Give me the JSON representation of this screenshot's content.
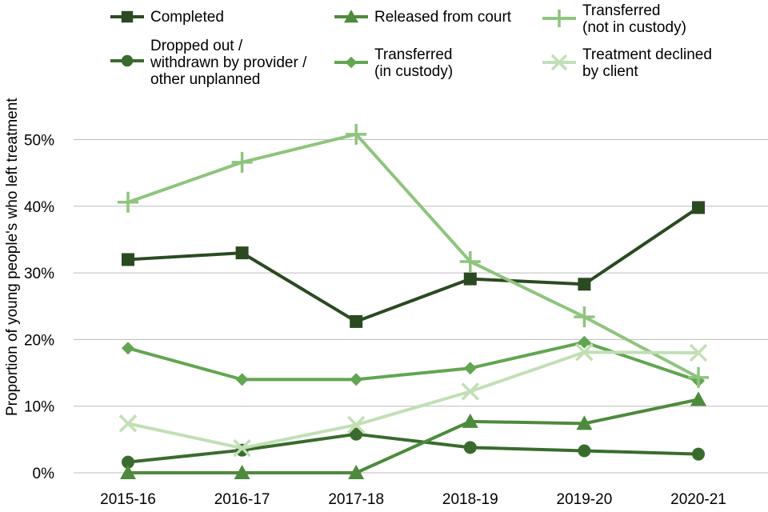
{
  "chart_data": {
    "type": "line",
    "title": "",
    "xlabel": "",
    "ylabel": "Proportion of young people's who left treatment",
    "categories": [
      "2015-16",
      "2016-17",
      "2017-18",
      "2018-19",
      "2019-20",
      "2020-21"
    ],
    "ylim": [
      0,
      0.55
    ],
    "yticks": [
      {
        "value": 0,
        "label": "0%"
      },
      {
        "value": 0.1,
        "label": "10%"
      },
      {
        "value": 0.2,
        "label": "20%"
      },
      {
        "value": 0.3,
        "label": "30%"
      },
      {
        "value": 0.4,
        "label": "40%"
      },
      {
        "value": 0.5,
        "label": "50%"
      }
    ],
    "grid": "horizontal",
    "legend_position": "top",
    "series": [
      {
        "name": "Completed",
        "marker": "square",
        "color": "#2b4a22",
        "values": [
          0.32,
          0.33,
          0.227,
          0.291,
          0.283,
          0.398
        ]
      },
      {
        "name": "Dropped out / withdrawn by provider / other unplanned",
        "marker": "circle",
        "color": "#3a6b2e",
        "values": [
          0.016,
          0.034,
          0.058,
          0.038,
          0.033,
          0.028
        ]
      },
      {
        "name": "Released from court",
        "marker": "triangle",
        "color": "#4e8a3e",
        "values": [
          0.0,
          0.0,
          0.0,
          0.077,
          0.074,
          0.11
        ]
      },
      {
        "name": "Transferred (in custody)",
        "marker": "diamond",
        "color": "#63a552",
        "values": [
          0.187,
          0.14,
          0.14,
          0.157,
          0.196,
          0.138
        ]
      },
      {
        "name": "Transferred (not in custody)",
        "marker": "plus",
        "color": "#8fc47e",
        "values": [
          0.406,
          0.466,
          0.508,
          0.317,
          0.234,
          0.143
        ]
      },
      {
        "name": "Treatment declined by client",
        "marker": "cross",
        "color": "#c2dfb6",
        "values": [
          0.074,
          0.037,
          0.072,
          0.122,
          0.181,
          0.18
        ]
      }
    ]
  },
  "legend": [
    {
      "label": "Completed"
    },
    {
      "label": "Dropped out /\nwithdrawn by provider /\nother unplanned"
    },
    {
      "label": "Released from court"
    },
    {
      "label": "Transferred\n(in custody)"
    },
    {
      "label": "Transferred\n(not in custody)"
    },
    {
      "label": "Treatment declined\nby client"
    }
  ]
}
